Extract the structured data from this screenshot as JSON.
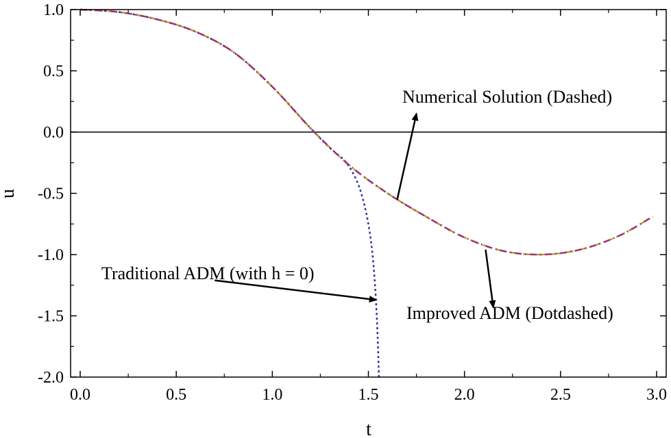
{
  "chart_data": {
    "type": "line",
    "title": "",
    "xlabel": "t",
    "ylabel": "u",
    "xlim": [
      -0.05,
      3.05
    ],
    "ylim": [
      -2.0,
      1.0
    ],
    "x_ticks": [
      0.0,
      0.5,
      1.0,
      1.5,
      2.0,
      2.5,
      3.0
    ],
    "x_tick_labels": [
      "0.0",
      "0.5",
      "1.0",
      "1.5",
      "2.0",
      "2.5",
      "3.0"
    ],
    "y_ticks": [
      -2.0,
      -1.5,
      -1.0,
      -0.5,
      0.0,
      0.5,
      1.0
    ],
    "y_tick_labels": [
      "-2.0",
      "-1.5",
      "-1.0",
      "-0.5",
      "0.0",
      "0.5",
      "1.0"
    ],
    "reference_line": {
      "y": 0.0,
      "color": "#000000"
    },
    "series": [
      {
        "name": "Numerical Solution",
        "style": "dashed",
        "color": "#b0a040",
        "x": [
          0.0,
          0.2,
          0.4,
          0.6,
          0.8,
          1.0,
          1.2,
          1.4,
          1.6,
          1.8,
          2.0,
          2.2,
          2.4,
          2.6,
          2.8,
          2.98
        ],
        "y": [
          1.0,
          0.98,
          0.92,
          0.82,
          0.65,
          0.37,
          0.03,
          -0.27,
          -0.5,
          -0.69,
          -0.86,
          -0.97,
          -1.0,
          -0.96,
          -0.85,
          -0.69
        ]
      },
      {
        "name": "Improved ADM",
        "style": "dotdashed",
        "color": "#a03070",
        "x": [
          0.0,
          0.2,
          0.4,
          0.6,
          0.8,
          1.0,
          1.2,
          1.4,
          1.6,
          1.8,
          2.0,
          2.2,
          2.4,
          2.6,
          2.8,
          2.98
        ],
        "y": [
          1.0,
          0.98,
          0.92,
          0.82,
          0.65,
          0.37,
          0.03,
          -0.27,
          -0.5,
          -0.69,
          -0.86,
          -0.97,
          -1.0,
          -0.96,
          -0.85,
          -0.69
        ]
      },
      {
        "name": "Traditional ADM (with h = 0)",
        "style": "dotted",
        "color": "#2a2aa0",
        "x": [
          0.0,
          0.2,
          0.4,
          0.6,
          0.8,
          1.0,
          1.2,
          1.3,
          1.38,
          1.44,
          1.48,
          1.51,
          1.53,
          1.545,
          1.555
        ],
        "y": [
          1.0,
          0.98,
          0.92,
          0.82,
          0.65,
          0.37,
          0.03,
          -0.13,
          -0.24,
          -0.4,
          -0.6,
          -0.85,
          -1.15,
          -1.55,
          -2.0
        ]
      }
    ],
    "annotations": [
      {
        "text": "Numerical Solution (Dashed)",
        "arrow_from": [
          1.65,
          -0.55
        ],
        "arrow_to": [
          1.75,
          0.15
        ]
      },
      {
        "text": "Improved ADM (Dotdashed)",
        "arrow_from": [
          2.11,
          -0.96
        ],
        "arrow_to": [
          2.15,
          -1.43
        ]
      },
      {
        "text": "Traditional ADM (with h = 0)",
        "arrow_from": [
          0.7,
          -1.21
        ],
        "arrow_to": [
          1.54,
          -1.37
        ]
      }
    ]
  }
}
